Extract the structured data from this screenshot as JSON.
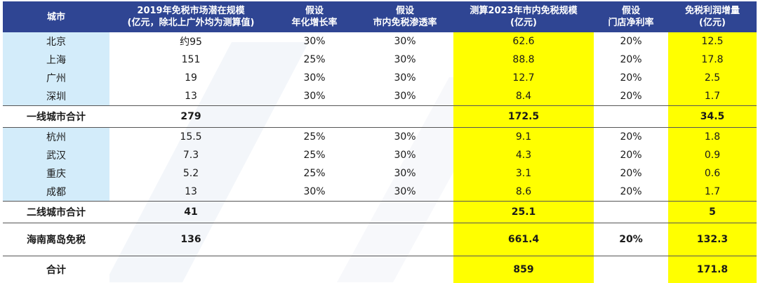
{
  "headers": [
    [
      "城市"
    ],
    [
      "2019年免税市场潜在规模",
      "(亿元，除北上广外均为测算值)"
    ],
    [
      "假设",
      "年化增长率"
    ],
    [
      "假设",
      "市内免税渗透率"
    ],
    [
      "测算2023年市内免税规模",
      "(亿元)"
    ],
    [
      "假设",
      "门店净利率"
    ],
    [
      "免税利润增量",
      "(亿元)"
    ]
  ],
  "rows": [
    [
      "北京",
      "约95",
      "30%",
      "30%",
      "62.6",
      "20%",
      "12.5"
    ],
    [
      "上海",
      "151",
      "25%",
      "30%",
      "88.8",
      "20%",
      "17.8"
    ],
    [
      "广州",
      "19",
      "30%",
      "30%",
      "12.7",
      "20%",
      "2.5"
    ],
    [
      "深圳",
      "13",
      "30%",
      "30%",
      "8.4",
      "20%",
      "1.7"
    ],
    [
      "一线城市合计",
      "279",
      "",
      "",
      "172.5",
      "",
      "34.5"
    ],
    [
      "杭州",
      "15.5",
      "25%",
      "30%",
      "9.1",
      "20%",
      "1.8"
    ],
    [
      "武汉",
      "7.3",
      "25%",
      "30%",
      "4.3",
      "20%",
      "0.9"
    ],
    [
      "重庆",
      "5.2",
      "25%",
      "30%",
      "3.1",
      "20%",
      "0.6"
    ],
    [
      "成都",
      "13",
      "30%",
      "30%",
      "8.6",
      "20%",
      "1.7"
    ],
    [
      "二线城市合计",
      "41",
      "",
      "",
      "25.1",
      "",
      "5"
    ],
    [
      "海南离岛免税",
      "136",
      "",
      "",
      "661.4",
      "20%",
      "132.3"
    ],
    [
      "合计",
      "",
      "",
      "",
      "859",
      "",
      "171.8"
    ]
  ],
  "colors": {
    "header_bg": "#2f4593",
    "city_column_bg": "#d3ecfa",
    "highlight": "#ffff00"
  }
}
